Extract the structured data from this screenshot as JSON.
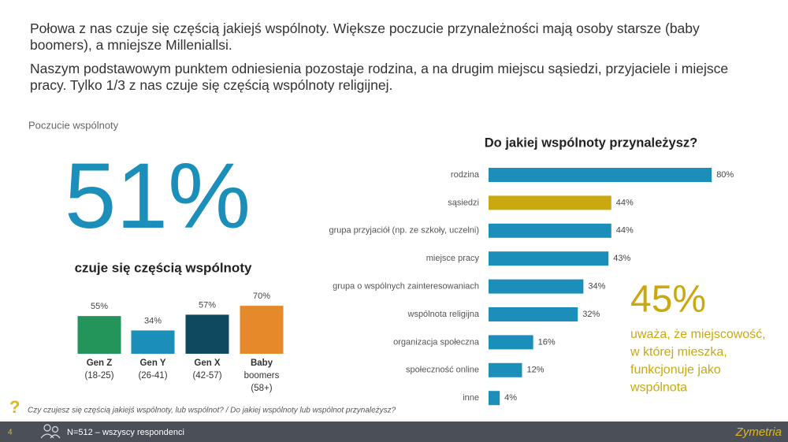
{
  "header": {
    "paragraphs": [
      "Połowa z nas czuje się częścią jakiejś wspólnoty. Większe poczucie przynależności mają osoby starsze (baby boomers), a mniejsze Milleniallsi.",
      "Naszym podstawowym punktem odniesienia pozostaje rodzina, a na drugim miejscu sąsiedzi, przyjaciele i miejsce pracy. Tylko 1/3 z nas czuje się częścią wspólnoty religijnej."
    ]
  },
  "section_label": "Poczucie wspólnoty",
  "callouts": [
    {
      "value": "51%",
      "lines": [
        "czuje się częścią wspólnoty"
      ]
    },
    {
      "value": "45%",
      "lines": [
        "uważa, że miejscowość,",
        "w której mieszka,",
        "funkcjonuje jako",
        "wspólnota"
      ]
    }
  ],
  "chart_data": [
    {
      "type": "bar",
      "categories": [
        [
          "Gen Z",
          "(18-25)"
        ],
        [
          "Gen Y",
          "(26-41)"
        ],
        [
          "Gen X",
          "(42-57)"
        ],
        [
          "Baby",
          "boomers",
          "(58+)"
        ]
      ],
      "values": [
        55,
        34,
        57,
        70
      ],
      "value_labels": [
        "55%",
        "34%",
        "57%",
        "70%"
      ],
      "colors": [
        "#24955a",
        "#1b8fb9",
        "#0e4a5f",
        "#e5892b"
      ]
    },
    {
      "type": "hbar",
      "title": "Do jakiej wspólnoty przynależysz?",
      "categories": [
        "rodzina",
        "sąsiedzi",
        "grupa przyjaciół (np. ze szkoły, uczelni)",
        "miejsce pracy",
        "grupa o wspólnych zainteresowaniach",
        "wspólnota religijna",
        "organizacja społeczna",
        "społeczność online",
        "inne"
      ],
      "values": [
        80,
        44,
        44,
        43,
        34,
        32,
        16,
        12,
        4
      ],
      "value_labels": [
        "80%",
        "44%",
        "44%",
        "43%",
        "34%",
        "32%",
        "16%",
        "12%",
        "4%"
      ],
      "colors": [
        "#1b8fb9",
        "#c9a90f",
        "#1b8fb9",
        "#1b8fb9",
        "#1b8fb9",
        "#1b8fb9",
        "#1b8fb9",
        "#1b8fb9",
        "#1b8fb9"
      ]
    }
  ],
  "footer": {
    "question": "Czy czujesz się częścią jakiejś wspólnoty, lub wspólnot? / Do jakiej wspólnoty lub wspólnot przynależysz?",
    "sample": "N=512 – wszyscy respondenci",
    "page": "4",
    "logo": "Zymetria"
  }
}
